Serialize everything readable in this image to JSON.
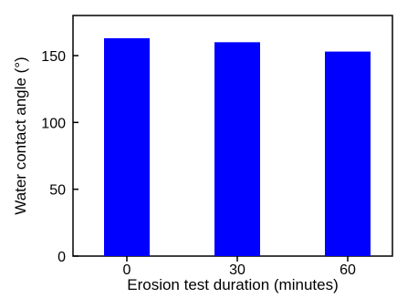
{
  "chart_data": {
    "type": "bar",
    "categories": [
      "0",
      "30",
      "60"
    ],
    "values": [
      163,
      160,
      153
    ],
    "title": "",
    "xlabel": "Erosion test duration (minutes)",
    "ylabel": "Water contact angle (°)",
    "ylim": [
      0,
      180
    ],
    "yticks": [
      "0",
      "50",
      "100",
      "150"
    ],
    "grid": false,
    "bar_color": "#0000ff",
    "axis_color": "#000000"
  }
}
